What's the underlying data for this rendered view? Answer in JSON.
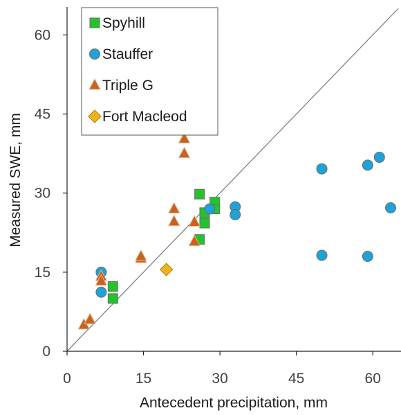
{
  "chart_data": {
    "type": "scatter",
    "xlabel": "Antecedent precipitation, mm",
    "ylabel": "Measured SWE, mm",
    "xlim": [
      0,
      65
    ],
    "ylim": [
      0,
      67
    ],
    "x_ticks": [
      0,
      15,
      30,
      45,
      60
    ],
    "y_ticks": [
      0,
      15,
      30,
      45,
      60
    ],
    "grid": false,
    "reference_line": "1:1",
    "legend_position": "top-left",
    "series": [
      {
        "name": "Spyhill",
        "marker": "square",
        "color": "#22c42a",
        "points": [
          [
            9.0,
            12.3
          ],
          [
            9.0,
            10.0
          ],
          [
            26.0,
            29.8
          ],
          [
            26.0,
            21.2
          ],
          [
            27.0,
            26.3
          ],
          [
            27.0,
            24.3
          ],
          [
            29.0,
            28.3
          ],
          [
            29.0,
            27.0
          ]
        ]
      },
      {
        "name": "Stauffer",
        "marker": "circle",
        "color": "#1fa2d8",
        "points": [
          [
            6.7,
            15.0
          ],
          [
            6.7,
            11.2
          ],
          [
            28.0,
            27.0
          ],
          [
            33.0,
            27.4
          ],
          [
            33.0,
            25.9
          ],
          [
            50.0,
            34.6
          ],
          [
            50.0,
            18.2
          ],
          [
            59.0,
            35.3
          ],
          [
            59.0,
            18.0
          ],
          [
            61.3,
            36.8
          ],
          [
            63.5,
            27.2
          ]
        ]
      },
      {
        "name": "Triple G",
        "marker": "triangle",
        "color": "#c8621e",
        "points": [
          [
            3.3,
            5.0
          ],
          [
            4.5,
            6.0
          ],
          [
            6.7,
            14.2
          ],
          [
            6.7,
            13.3
          ],
          [
            14.5,
            17.6
          ],
          [
            14.5,
            18.0
          ],
          [
            21.0,
            27.0
          ],
          [
            21.0,
            24.6
          ],
          [
            23.0,
            40.3
          ],
          [
            23.0,
            37.5
          ],
          [
            25.0,
            24.5
          ],
          [
            25.0,
            20.8
          ]
        ]
      },
      {
        "name": "Fort Macleod",
        "marker": "diamond",
        "color": "#f0b418",
        "points": [
          [
            19.5,
            15.5
          ]
        ]
      }
    ]
  }
}
